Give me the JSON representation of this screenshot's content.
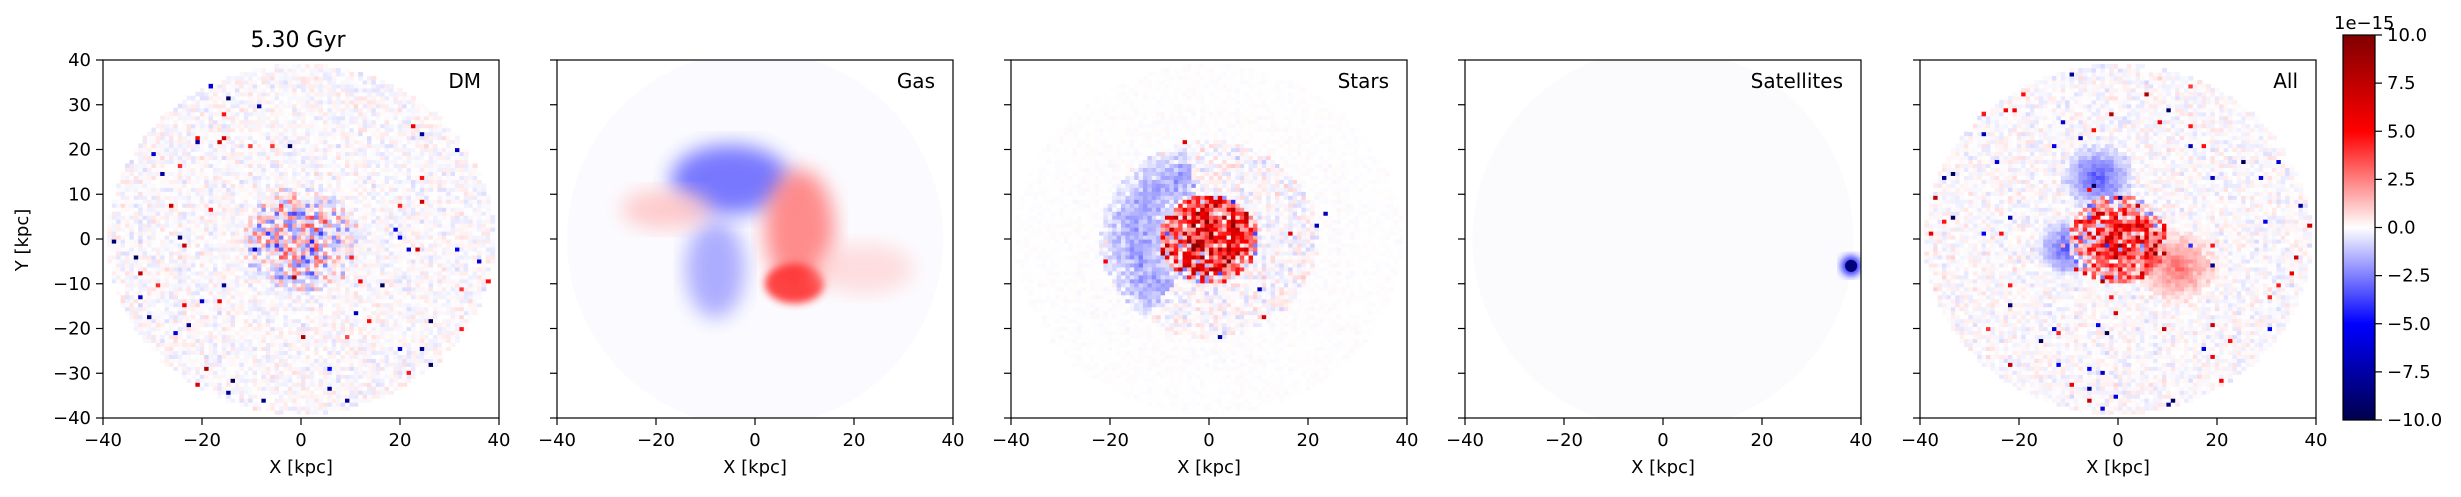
{
  "figure": {
    "time_label": "5.30 Gyr",
    "xlabel": "X [kpc]",
    "ylabel": "Y [kpc]"
  },
  "chart_data": {
    "type": "heatmap",
    "title": "5.30 Gyr",
    "xlabel": "X [kpc]",
    "ylabel": "Y [kpc]",
    "xlim": [
      -40,
      40
    ],
    "ylim": [
      -40,
      40
    ],
    "xticks": [
      -40,
      -20,
      0,
      20,
      40
    ],
    "yticks": [
      -40,
      -30,
      -20,
      -10,
      0,
      10,
      20,
      30,
      40
    ],
    "colormap": "seismic",
    "colormap_stops": [
      "#00004c",
      "#0000ff",
      "#ffffff",
      "#ff0000",
      "#800000"
    ],
    "panels": [
      {
        "label": "DM",
        "feature": "noisy halo with blue-red speckled core",
        "y_axis_labeled": true
      },
      {
        "label": "Gas",
        "feature": "blue arc at top-left, red arc on right side, red knot near (8,-8)",
        "y_axis_labeled": false
      },
      {
        "label": "Stars",
        "feature": "dense red/blue speckled core, faint blue ring on left",
        "y_axis_labeled": false
      },
      {
        "label": "Satellites",
        "feature": "single compact dark-blue clump at about (38,-6)",
        "y_axis_labeled": false
      },
      {
        "label": "All",
        "feature": "combined: blue lobes above/left and red core with red spiral to the right",
        "y_axis_labeled": false
      }
    ],
    "colorbar": {
      "ticks": [
        -10.0,
        -7.5,
        -5.0,
        -2.5,
        0.0,
        2.5,
        5.0,
        7.5,
        10.0
      ],
      "tick_labels": [
        "−10.0",
        "−7.5",
        "−5.0",
        "−2.5",
        "0.0",
        "2.5",
        "5.0",
        "7.5",
        "10.0"
      ],
      "range": [
        -10.0,
        10.0
      ],
      "offset_label": "1e−15"
    }
  }
}
